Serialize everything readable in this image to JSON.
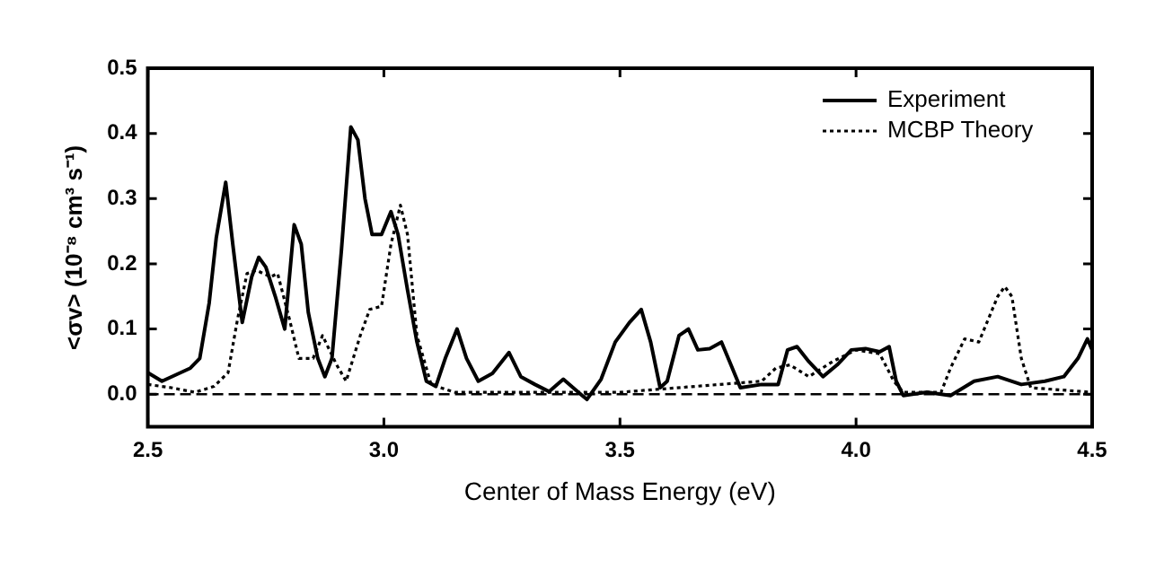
{
  "chart_data": {
    "type": "line",
    "xlabel": "Center of Mass Energy (eV)",
    "ylabel": "<σv> (10⁻⁸ cm³ s⁻¹)",
    "xlim": [
      2.5,
      4.5
    ],
    "xticks": [
      2.5,
      {
        "value": 3,
        "label": "3.0"
      },
      3.5,
      {
        "value": 4,
        "label": "4.0"
      },
      4.5
    ],
    "ylim": [
      -0.05,
      0.5
    ],
    "yticks": [
      {
        "value": 0,
        "label": "0.0"
      },
      0.1,
      0.2,
      0.3,
      0.4,
      0.5
    ],
    "grid": false,
    "legend": "top right",
    "marker": "none",
    "ref_lines": [
      {
        "axis": "y",
        "value": 0,
        "color": "#000000",
        "line_style": "dashed"
      }
    ],
    "series": [
      {
        "name": "Experiment",
        "color": "#000000",
        "line_style": "solid",
        "x": [
          2.5,
          2.53,
          2.56,
          2.59,
          2.61,
          2.63,
          2.645,
          2.665,
          2.68,
          2.7,
          2.72,
          2.735,
          2.75,
          2.77,
          2.79,
          2.81,
          2.825,
          2.84,
          2.86,
          2.875,
          2.89,
          2.91,
          2.93,
          2.945,
          2.96,
          2.975,
          2.995,
          3.015,
          3.03,
          3.05,
          3.07,
          3.09,
          3.11,
          3.13,
          3.155,
          3.175,
          3.2,
          3.23,
          3.265,
          3.29,
          3.32,
          3.35,
          3.38,
          3.42,
          3.43,
          3.46,
          3.49,
          3.52,
          3.545,
          3.565,
          3.585,
          3.6,
          3.625,
          3.645,
          3.665,
          3.69,
          3.715,
          3.735,
          3.755,
          3.8,
          3.835,
          3.855,
          3.875,
          3.9,
          3.93,
          3.96,
          3.99,
          4.02,
          4.05,
          4.07,
          4.085,
          4.1,
          4.15,
          4.2,
          4.25,
          4.3,
          4.35,
          4.4,
          4.44,
          4.47,
          4.49,
          4.5
        ],
        "values": [
          0.033,
          0.02,
          0.03,
          0.04,
          0.055,
          0.14,
          0.24,
          0.325,
          0.23,
          0.11,
          0.18,
          0.21,
          0.195,
          0.15,
          0.1,
          0.26,
          0.23,
          0.125,
          0.055,
          0.027,
          0.055,
          0.22,
          0.41,
          0.39,
          0.3,
          0.245,
          0.245,
          0.28,
          0.245,
          0.16,
          0.08,
          0.02,
          0.012,
          0.055,
          0.1,
          0.055,
          0.02,
          0.032,
          0.064,
          0.027,
          0.015,
          0.004,
          0.023,
          -0.002,
          -0.008,
          0.023,
          0.08,
          0.11,
          0.13,
          0.08,
          0.01,
          0.02,
          0.09,
          0.1,
          0.068,
          0.07,
          0.08,
          0.045,
          0.01,
          0.015,
          0.015,
          0.068,
          0.073,
          0.05,
          0.027,
          0.045,
          0.068,
          0.07,
          0.065,
          0.073,
          0.02,
          -0.002,
          0.003,
          -0.002,
          0.02,
          0.027,
          0.015,
          0.02,
          0.027,
          0.055,
          0.085,
          0.068
        ]
      },
      {
        "name": "MCBP Theory",
        "color": "#000000",
        "line_style": "dotted",
        "x": [
          2.5,
          2.55,
          2.6,
          2.64,
          2.67,
          2.69,
          2.71,
          2.73,
          2.76,
          2.775,
          2.8,
          2.82,
          2.85,
          2.87,
          2.9,
          2.92,
          2.95,
          2.97,
          2.995,
          3.015,
          3.035,
          3.05,
          3.07,
          3.1,
          3.15,
          3.5,
          3.8,
          3.83,
          3.86,
          3.9,
          3.95,
          4.0,
          4.05,
          4.08,
          4.1,
          4.18,
          4.2,
          4.23,
          4.26,
          4.3,
          4.315,
          4.33,
          4.35,
          4.37,
          4.5
        ],
        "values": [
          0.015,
          0.01,
          0.003,
          0.012,
          0.033,
          0.115,
          0.185,
          0.19,
          0.18,
          0.185,
          0.115,
          0.055,
          0.055,
          0.09,
          0.045,
          0.02,
          0.09,
          0.13,
          0.135,
          0.23,
          0.29,
          0.245,
          0.09,
          0.015,
          0.003,
          0.003,
          0.02,
          0.04,
          0.045,
          0.027,
          0.05,
          0.068,
          0.062,
          0.02,
          0.003,
          0.003,
          0.04,
          0.085,
          0.08,
          0.15,
          0.165,
          0.15,
          0.055,
          0.01,
          0.003
        ]
      }
    ]
  }
}
